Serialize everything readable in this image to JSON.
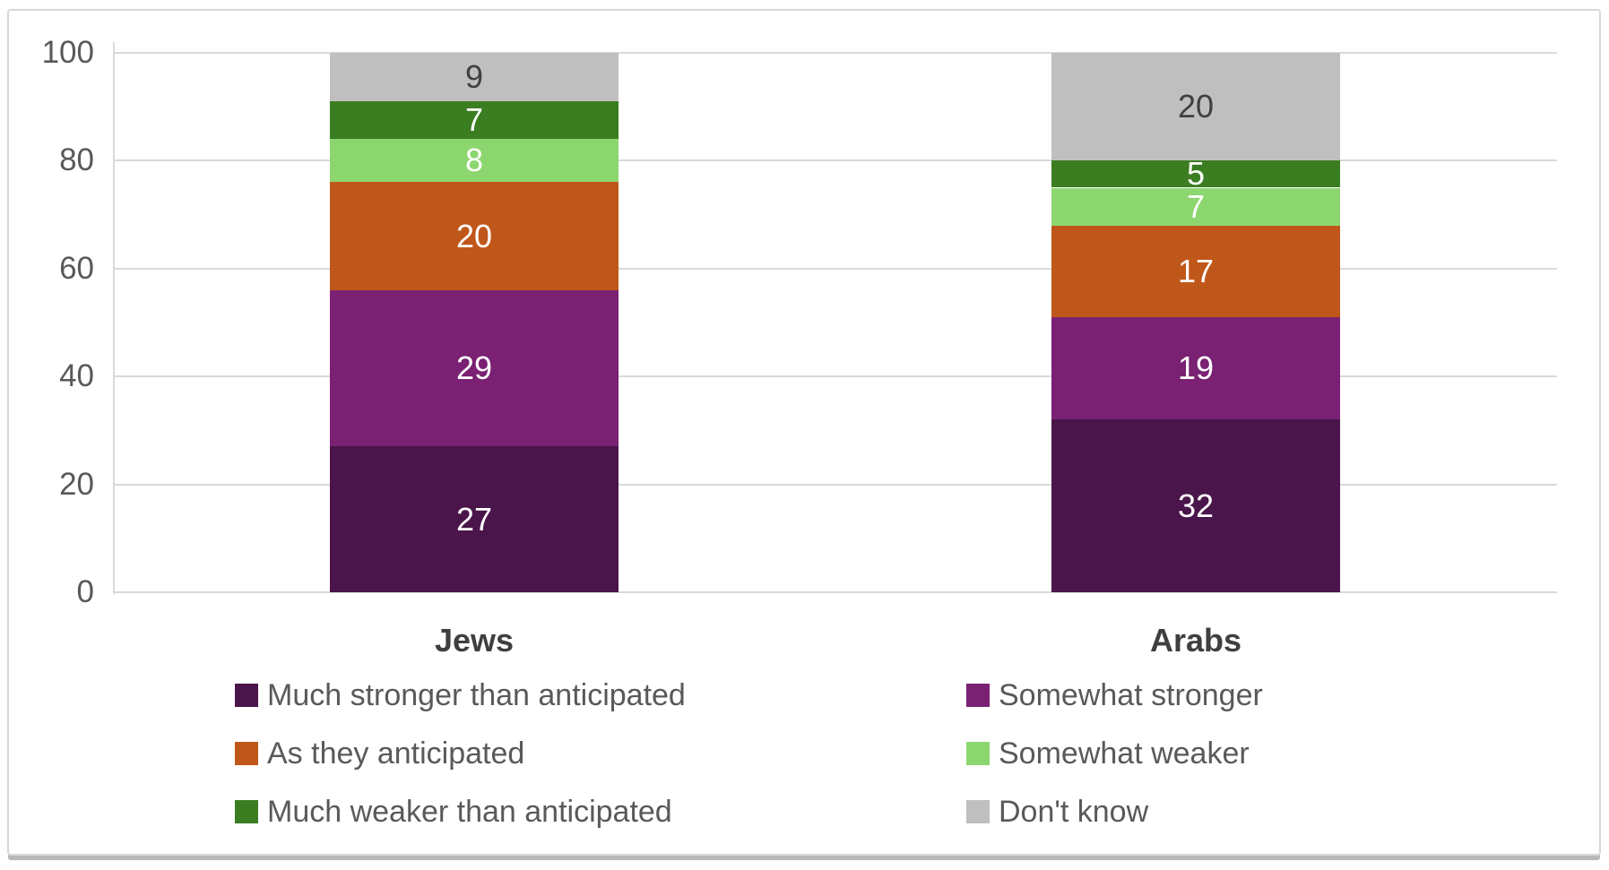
{
  "chart_data": {
    "type": "stacked-bar",
    "title": "",
    "categories": [
      "Jews",
      "Arabs"
    ],
    "series": [
      {
        "name": "Much stronger than anticipated",
        "color": "#4A154A",
        "text_color": "#FFFFFF",
        "values": [
          27,
          32
        ]
      },
      {
        "name": "Somewhat stronger",
        "color": "#7A2173",
        "text_color": "#FFFFFF",
        "values": [
          29,
          19
        ]
      },
      {
        "name": "As they anticipated",
        "color": "#C0571A",
        "text_color": "#FFFFFF",
        "values": [
          20,
          17
        ]
      },
      {
        "name": "Somewhat weaker",
        "color": "#8CD66F",
        "text_color": "#FFFFFF",
        "values": [
          8,
          7
        ]
      },
      {
        "name": "Much weaker than anticipated",
        "color": "#3B7D21",
        "text_color": "#FFFFFF",
        "values": [
          7,
          5
        ]
      },
      {
        "name": "Don't know",
        "color": "#BFBFBF",
        "text_color": "#404040",
        "values": [
          9,
          20
        ]
      }
    ],
    "y_axis": {
      "min": 0,
      "max": 100,
      "ticks": [
        0,
        20,
        40,
        60,
        80,
        100
      ]
    },
    "grid": true,
    "legend_position": "bottom",
    "legend_columns": 2,
    "colors": {
      "gridline": "#D9D9D9",
      "axis_line": "#D9D9D9",
      "tick_label": "#595959",
      "category_label": "#3F3F3F",
      "legend_text": "#595959",
      "frame_border": "#D8D8D8",
      "background": "#FFFFFF"
    }
  }
}
